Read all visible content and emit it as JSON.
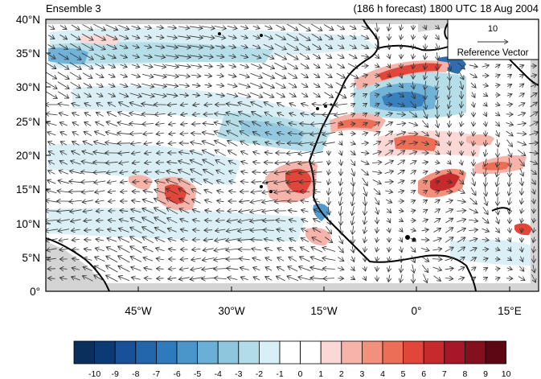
{
  "header": {
    "left_title": "Ensemble 3",
    "right_title": "(186 h forecast) 1800 UTC 18 Aug 2004"
  },
  "map": {
    "lat_labels": [
      "40°N",
      "35°N",
      "30°N",
      "25°N",
      "20°N",
      "15°N",
      "10°N",
      "5°N",
      "0°"
    ],
    "lon_labels": [
      "45°W",
      "30°W",
      "15°W",
      "0°",
      "15°E"
    ],
    "ocean_color": "#ffffff",
    "missing_color": "#d4d4d4",
    "reference_vector": {
      "value": "10",
      "label": "Reference Vector"
    }
  },
  "colorbar": {
    "labels": [
      "-10",
      "-9",
      "-8",
      "-7",
      "-6",
      "-5",
      "-4",
      "-3",
      "-2",
      "-1",
      "0",
      "1",
      "2",
      "3",
      "4",
      "5",
      "6",
      "7",
      "8",
      "9",
      "10"
    ],
    "colors": [
      "#0a2f5c",
      "#0b3a75",
      "#18509a",
      "#2466ac",
      "#2f7abc",
      "#4a95c9",
      "#6aafd6",
      "#8ec6de",
      "#b2dde8",
      "#d8eff5",
      "#ffffff",
      "#ffffff",
      "#fbd7d5",
      "#f6b3a9",
      "#f2907e",
      "#ec6e57",
      "#e0463a",
      "#c72a2d",
      "#a6172a",
      "#84101f",
      "#5e0714"
    ]
  }
}
